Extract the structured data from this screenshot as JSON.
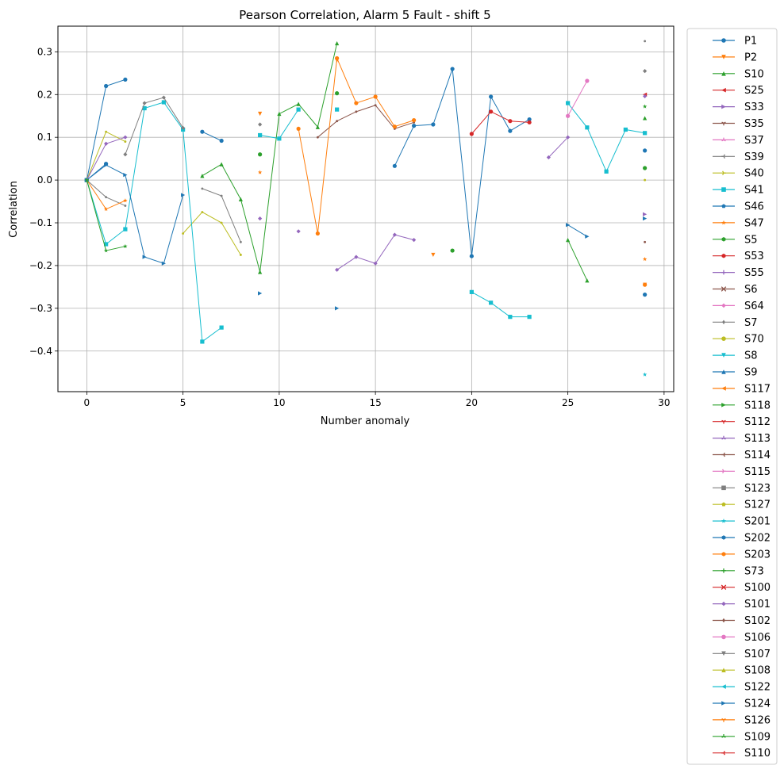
{
  "chart_data": {
    "type": "line",
    "title": "Pearson Correlation, Alarm 5 Fault -  shift 5",
    "xlabel": "Number anomaly",
    "ylabel": "Correlation",
    "xlim": [
      -1.5,
      30.5
    ],
    "ylim": [
      -0.495,
      0.36
    ],
    "x_ticks": [
      0,
      5,
      10,
      15,
      20,
      25,
      30
    ],
    "y_ticks": [
      -0.4,
      -0.3,
      -0.2,
      -0.1,
      0.0,
      0.1,
      0.2,
      0.3
    ],
    "grid": true,
    "legend_position": "outside-right",
    "series": [
      {
        "name": "P1",
        "color": "#1f77b4",
        "marker": "o",
        "values": [
          0.0,
          0.22,
          0.235,
          null,
          null,
          null,
          0.113,
          0.092,
          null,
          null,
          null,
          null,
          null,
          null,
          null,
          null,
          0.033,
          0.127,
          0.13,
          0.26,
          -0.178,
          0.195,
          0.115,
          0.142,
          null,
          null,
          null,
          null,
          null,
          0.069
        ]
      },
      {
        "name": "P2",
        "color": "#ff7f0e",
        "marker": "v",
        "values": [
          0.0,
          null,
          null,
          null,
          null,
          null,
          null,
          null,
          null,
          0.155,
          null,
          null,
          null,
          0.28,
          null,
          null,
          null,
          null,
          -0.175,
          null,
          null,
          null,
          null,
          null,
          null,
          null,
          null,
          null,
          null,
          -0.245
        ]
      },
      {
        "name": "S10",
        "color": "#2ca02c",
        "marker": "^",
        "values": [
          0.0,
          null,
          null,
          null,
          null,
          null,
          0.01,
          0.037,
          -0.045,
          -0.215,
          0.155,
          0.178,
          0.124,
          0.32,
          null,
          null,
          null,
          null,
          null,
          null,
          null,
          null,
          null,
          null,
          null,
          -0.14,
          -0.235,
          null,
          null,
          0.145
        ]
      },
      {
        "name": "S25",
        "color": "#d62728",
        "marker": "<",
        "values": [
          0.0,
          null,
          null,
          null,
          null,
          null,
          null,
          null,
          null,
          null,
          null,
          null,
          null,
          null,
          null,
          null,
          null,
          null,
          null,
          null,
          null,
          null,
          null,
          null,
          null,
          null,
          null,
          null,
          null,
          0.2
        ]
      },
      {
        "name": "S33",
        "color": "#9467bd",
        "marker": ">",
        "values": [
          0.0,
          null,
          null,
          null,
          null,
          null,
          null,
          null,
          null,
          null,
          null,
          null,
          null,
          null,
          null,
          null,
          null,
          null,
          null,
          null,
          null,
          null,
          null,
          null,
          null,
          null,
          null,
          null,
          null,
          -0.08
        ]
      },
      {
        "name": "S39",
        "color": "#7f7f7f",
        "marker": ".",
        "values": [
          0.0,
          -0.04,
          -0.06,
          null,
          null,
          null,
          -0.02,
          -0.037,
          -0.145,
          null,
          null,
          null,
          null,
          null,
          null,
          null,
          null,
          null,
          null,
          null,
          null,
          null,
          null,
          null,
          null,
          null,
          null,
          null,
          null,
          0.325
        ]
      },
      {
        "name": "S40",
        "color": "#bcbd22",
        "marker": ".",
        "values": [
          0.0,
          0.113,
          0.09,
          null,
          null,
          -0.125,
          -0.075,
          -0.1,
          -0.175,
          null,
          null,
          null,
          null,
          null,
          null,
          null,
          null,
          null,
          null,
          null,
          null,
          null,
          null,
          null,
          null,
          null,
          null,
          null,
          null,
          0.0
        ]
      },
      {
        "name": "S41",
        "color": "#17becf",
        "marker": "s",
        "values": [
          0.0,
          -0.15,
          -0.115,
          0.168,
          0.182,
          0.118,
          -0.378,
          -0.345,
          null,
          0.105,
          0.097,
          0.165,
          null,
          0.165,
          null,
          null,
          null,
          null,
          null,
          null,
          -0.262,
          -0.287,
          -0.32,
          -0.32,
          null,
          0.18,
          0.123,
          0.02,
          0.118,
          0.11
        ]
      },
      {
        "name": "S46",
        "color": "#1f77b4",
        "marker": "o",
        "values": [
          0.0,
          0.038,
          null,
          null,
          null,
          null,
          null,
          null,
          null,
          null,
          null,
          null,
          null,
          null,
          null,
          null,
          null,
          null,
          null,
          null,
          null,
          null,
          null,
          null,
          null,
          null,
          null,
          null,
          null,
          -0.268
        ]
      },
      {
        "name": "S47",
        "color": "#ff7f0e",
        "marker": "*",
        "values": [
          0.0,
          -0.068,
          -0.048,
          null,
          null,
          null,
          null,
          null,
          null,
          0.018,
          null,
          null,
          null,
          null,
          null,
          null,
          null,
          null,
          null,
          null,
          null,
          null,
          null,
          null,
          null,
          null,
          null,
          null,
          null,
          -0.185
        ]
      },
      {
        "name": "S5",
        "color": "#2ca02c",
        "marker": "o",
        "values": [
          0.0,
          null,
          null,
          null,
          null,
          null,
          null,
          null,
          null,
          0.06,
          null,
          null,
          null,
          0.203,
          null,
          null,
          null,
          null,
          null,
          -0.165,
          null,
          null,
          null,
          null,
          null,
          null,
          null,
          null,
          null,
          0.028
        ]
      },
      {
        "name": "S7",
        "color": "#7f7f7f",
        "marker": "D",
        "values": [
          0.0,
          null,
          0.06,
          0.18,
          0.193,
          0.122,
          null,
          null,
          null,
          0.13,
          null,
          null,
          null,
          null,
          null,
          null,
          null,
          null,
          null,
          null,
          null,
          null,
          null,
          null,
          null,
          null,
          null,
          null,
          null,
          0.255
        ]
      },
      {
        "name": "S101",
        "color": "#9467bd",
        "marker": "D",
        "values": [
          0.0,
          0.085,
          0.1,
          null,
          null,
          null,
          null,
          null,
          null,
          -0.09,
          null,
          -0.12,
          null,
          -0.21,
          -0.18,
          -0.195,
          -0.128,
          -0.14,
          null,
          null,
          null,
          null,
          null,
          null,
          0.053,
          0.1,
          null,
          null,
          null,
          0.196
        ]
      },
      {
        "name": "S124",
        "color": "#1f77b4",
        "marker": ">",
        "values": [
          0.0,
          0.035,
          0.012,
          -0.18,
          -0.195,
          -0.035,
          null,
          null,
          null,
          -0.265,
          null,
          null,
          null,
          -0.3,
          null,
          null,
          null,
          null,
          null,
          null,
          null,
          null,
          null,
          null,
          null,
          -0.105,
          -0.132,
          null,
          null,
          -0.09
        ]
      },
      {
        "name": "S109",
        "color": "#2ca02c",
        "marker": "*",
        "values": [
          0.0,
          -0.165,
          -0.155,
          null,
          null,
          null,
          null,
          null,
          null,
          null,
          null,
          null,
          null,
          null,
          null,
          null,
          null,
          null,
          null,
          null,
          null,
          null,
          null,
          null,
          null,
          null,
          null,
          null,
          null,
          0.172
        ]
      },
      {
        "name": "S201",
        "color": "#17becf",
        "marker": "*",
        "values": [
          null,
          null,
          null,
          null,
          null,
          null,
          null,
          null,
          null,
          null,
          null,
          null,
          null,
          null,
          null,
          null,
          null,
          null,
          null,
          null,
          null,
          null,
          null,
          null,
          null,
          null,
          null,
          null,
          null,
          -0.455
        ]
      },
      {
        "name": "S114",
        "color": "#8c564b",
        "marker": ".",
        "values": [
          null,
          null,
          null,
          null,
          null,
          null,
          null,
          null,
          null,
          null,
          null,
          null,
          0.1,
          0.138,
          0.16,
          0.175,
          0.12,
          0.135,
          null,
          null,
          null,
          null,
          null,
          null,
          null,
          null,
          null,
          null,
          null,
          -0.145
        ]
      },
      {
        "name": "S203",
        "color": "#ff7f0e",
        "marker": "o",
        "values": [
          null,
          null,
          null,
          null,
          null,
          null,
          null,
          null,
          null,
          null,
          null,
          0.12,
          -0.125,
          0.285,
          0.18,
          0.195,
          0.125,
          0.14,
          null,
          null,
          null,
          null,
          null,
          null,
          null,
          null,
          null,
          null,
          null,
          -0.245
        ]
      },
      {
        "name": "S53",
        "color": "#d62728",
        "marker": "o",
        "values": [
          null,
          null,
          null,
          null,
          null,
          null,
          null,
          null,
          null,
          null,
          null,
          null,
          null,
          null,
          null,
          null,
          null,
          null,
          null,
          null,
          0.108,
          0.16,
          0.138,
          0.135,
          null,
          null,
          null,
          null,
          null,
          null
        ]
      },
      {
        "name": "S106",
        "color": "#e377c2",
        "marker": "o",
        "values": [
          null,
          null,
          null,
          null,
          null,
          null,
          null,
          null,
          null,
          null,
          null,
          null,
          null,
          null,
          null,
          null,
          null,
          null,
          null,
          null,
          null,
          null,
          null,
          null,
          null,
          0.15,
          0.232,
          null,
          null,
          null
        ]
      }
    ],
    "legend_entries": [
      {
        "label": "P1",
        "color": "#1f77b4",
        "marker": "o"
      },
      {
        "label": "P2",
        "color": "#ff7f0e",
        "marker": "v"
      },
      {
        "label": "S10",
        "color": "#2ca02c",
        "marker": "^"
      },
      {
        "label": "S25",
        "color": "#d62728",
        "marker": "<"
      },
      {
        "label": "S33",
        "color": "#9467bd",
        "marker": ">"
      },
      {
        "label": "S35",
        "color": "#8c564b",
        "marker": "1"
      },
      {
        "label": "S37",
        "color": "#e377c2",
        "marker": "2"
      },
      {
        "label": "S39",
        "color": "#7f7f7f",
        "marker": "3"
      },
      {
        "label": "S40",
        "color": "#bcbd22",
        "marker": "4"
      },
      {
        "label": "S41",
        "color": "#17becf",
        "marker": "s"
      },
      {
        "label": "S46",
        "color": "#1f77b4",
        "marker": "p"
      },
      {
        "label": "S47",
        "color": "#ff7f0e",
        "marker": "*"
      },
      {
        "label": "S5",
        "color": "#2ca02c",
        "marker": "h"
      },
      {
        "label": "S53",
        "color": "#d62728",
        "marker": "H"
      },
      {
        "label": "S55",
        "color": "#9467bd",
        "marker": "+"
      },
      {
        "label": "S6",
        "color": "#8c564b",
        "marker": "x"
      },
      {
        "label": "S64",
        "color": "#e377c2",
        "marker": "D"
      },
      {
        "label": "S7",
        "color": "#7f7f7f",
        "marker": "d"
      },
      {
        "label": "S70",
        "color": "#bcbd22",
        "marker": "o"
      },
      {
        "label": "S8",
        "color": "#17becf",
        "marker": "v"
      },
      {
        "label": "S9",
        "color": "#1f77b4",
        "marker": "^"
      },
      {
        "label": "S117",
        "color": "#ff7f0e",
        "marker": "<"
      },
      {
        "label": "S118",
        "color": "#2ca02c",
        "marker": ">"
      },
      {
        "label": "S112",
        "color": "#d62728",
        "marker": "1"
      },
      {
        "label": "S113",
        "color": "#9467bd",
        "marker": "2"
      },
      {
        "label": "S114",
        "color": "#8c564b",
        "marker": "3"
      },
      {
        "label": "S115",
        "color": "#e377c2",
        "marker": "4"
      },
      {
        "label": "S123",
        "color": "#7f7f7f",
        "marker": "s"
      },
      {
        "label": "S127",
        "color": "#bcbd22",
        "marker": "p"
      },
      {
        "label": "S201",
        "color": "#17becf",
        "marker": "*"
      },
      {
        "label": "S202",
        "color": "#1f77b4",
        "marker": "h"
      },
      {
        "label": "S203",
        "color": "#ff7f0e",
        "marker": "H"
      },
      {
        "label": "S73",
        "color": "#2ca02c",
        "marker": "+"
      },
      {
        "label": "S100",
        "color": "#d62728",
        "marker": "x"
      },
      {
        "label": "S101",
        "color": "#9467bd",
        "marker": "D"
      },
      {
        "label": "S102",
        "color": "#8c564b",
        "marker": "d"
      },
      {
        "label": "S106",
        "color": "#e377c2",
        "marker": "o"
      },
      {
        "label": "S107",
        "color": "#7f7f7f",
        "marker": "v"
      },
      {
        "label": "S108",
        "color": "#bcbd22",
        "marker": "^"
      },
      {
        "label": "S122",
        "color": "#17becf",
        "marker": "<"
      },
      {
        "label": "S124",
        "color": "#1f77b4",
        "marker": ">"
      },
      {
        "label": "S126",
        "color": "#ff7f0e",
        "marker": "1"
      },
      {
        "label": "S109",
        "color": "#2ca02c",
        "marker": "2"
      },
      {
        "label": "S110",
        "color": "#d62728",
        "marker": "3"
      }
    ]
  }
}
